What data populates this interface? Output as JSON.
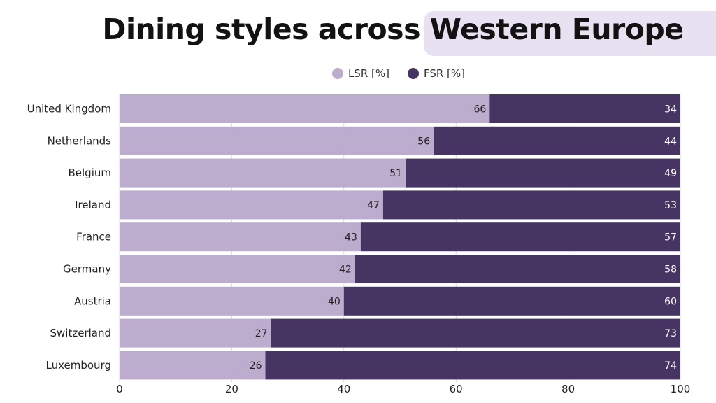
{
  "chart_data": {
    "type": "bar",
    "orientation": "horizontal",
    "stacked": true,
    "title_part1": "Dining styles across",
    "title_part2": "Western Europe",
    "categories": [
      "United Kingdom",
      "Netherlands",
      "Belgium",
      "Ireland",
      "France",
      "Germany",
      "Austria",
      "Switzerland",
      "Luxembourg"
    ],
    "series": [
      {
        "name": "LSR [%]",
        "color": "#bcaccd",
        "values": [
          66,
          56,
          51,
          47,
          43,
          42,
          40,
          27,
          26
        ]
      },
      {
        "name": "FSR [%]",
        "color": "#463463",
        "values": [
          34,
          44,
          49,
          53,
          57,
          58,
          60,
          73,
          74
        ]
      }
    ],
    "xlim": [
      0,
      100
    ],
    "xticks": [
      0,
      20,
      40,
      60,
      80,
      100
    ],
    "grid": true,
    "legend": "top-center"
  }
}
